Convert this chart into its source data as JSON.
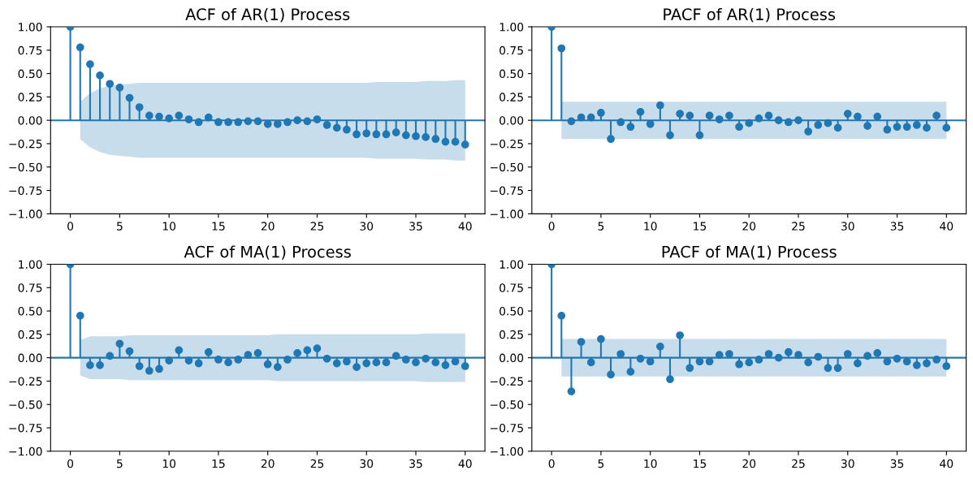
{
  "chart_data": [
    {
      "type": "lollipop",
      "title": "ACF of AR(1) Process",
      "x": [
        0,
        1,
        2,
        3,
        4,
        5,
        6,
        7,
        8,
        9,
        10,
        11,
        12,
        13,
        14,
        15,
        16,
        17,
        18,
        19,
        20,
        21,
        22,
        23,
        24,
        25,
        26,
        27,
        28,
        29,
        30,
        31,
        32,
        33,
        34,
        35,
        36,
        37,
        38,
        39,
        40
      ],
      "xlim": [
        -2,
        42
      ],
      "xticks": [
        0,
        5,
        10,
        15,
        20,
        25,
        30,
        35,
        40
      ],
      "ylim": [
        -1,
        1
      ],
      "yticks": [
        {
          "value": -1,
          "label": "−1.00"
        },
        {
          "value": -0.75,
          "label": "−0.75"
        },
        {
          "value": -0.5,
          "label": "−0.50"
        },
        {
          "value": -0.25,
          "label": "−0.25"
        },
        {
          "value": 0,
          "label": "0.00"
        },
        {
          "value": 0.25,
          "label": "0.25"
        },
        {
          "value": 0.5,
          "label": "0.50"
        },
        {
          "value": 0.75,
          "label": "0.75"
        },
        {
          "value": 1,
          "label": "1.00"
        }
      ],
      "marker": "circle",
      "grid": false,
      "ref_lines": [
        {
          "axis": "y",
          "value": 0,
          "color": "#1f77b4"
        }
      ],
      "series": [
        {
          "color": "#1f77b4",
          "values": [
            1.0,
            0.78,
            0.6,
            0.48,
            0.39,
            0.35,
            0.24,
            0.14,
            0.05,
            0.04,
            0.02,
            0.05,
            0.01,
            -0.02,
            0.03,
            -0.02,
            -0.02,
            -0.02,
            -0.01,
            -0.01,
            -0.04,
            -0.04,
            -0.02,
            0.0,
            -0.01,
            0.01,
            -0.05,
            -0.08,
            -0.1,
            -0.15,
            -0.14,
            -0.15,
            -0.15,
            -0.13,
            -0.16,
            -0.17,
            -0.18,
            -0.2,
            -0.23,
            -0.23,
            -0.26
          ],
          "upper": [
            null,
            0.2,
            0.29,
            0.34,
            0.37,
            0.38,
            0.39,
            0.4,
            0.4,
            0.4,
            0.4,
            0.4,
            0.4,
            0.4,
            0.4,
            0.4,
            0.4,
            0.4,
            0.4,
            0.4,
            0.4,
            0.4,
            0.4,
            0.4,
            0.4,
            0.4,
            0.4,
            0.4,
            0.4,
            0.4,
            0.4,
            0.41,
            0.41,
            0.41,
            0.41,
            0.41,
            0.42,
            0.42,
            0.42,
            0.43,
            0.43
          ],
          "lower": [
            null,
            -0.2,
            -0.29,
            -0.34,
            -0.37,
            -0.38,
            -0.39,
            -0.4,
            -0.4,
            -0.4,
            -0.4,
            -0.4,
            -0.4,
            -0.4,
            -0.4,
            -0.4,
            -0.4,
            -0.4,
            -0.4,
            -0.4,
            -0.4,
            -0.4,
            -0.4,
            -0.4,
            -0.4,
            -0.4,
            -0.4,
            -0.4,
            -0.4,
            -0.4,
            -0.4,
            -0.41,
            -0.41,
            -0.41,
            -0.41,
            -0.41,
            -0.42,
            -0.42,
            -0.42,
            -0.43,
            -0.43
          ]
        }
      ]
    },
    {
      "type": "lollipop",
      "title": "PACF of AR(1) Process",
      "x": [
        0,
        1,
        2,
        3,
        4,
        5,
        6,
        7,
        8,
        9,
        10,
        11,
        12,
        13,
        14,
        15,
        16,
        17,
        18,
        19,
        20,
        21,
        22,
        23,
        24,
        25,
        26,
        27,
        28,
        29,
        30,
        31,
        32,
        33,
        34,
        35,
        36,
        37,
        38,
        39,
        40
      ],
      "xlim": [
        -2,
        42
      ],
      "xticks": [
        0,
        5,
        10,
        15,
        20,
        25,
        30,
        35,
        40
      ],
      "ylim": [
        -1,
        1
      ],
      "yticks": [
        {
          "value": -1,
          "label": "−1.00"
        },
        {
          "value": -0.75,
          "label": "−0.75"
        },
        {
          "value": -0.5,
          "label": "−0.50"
        },
        {
          "value": -0.25,
          "label": "−0.25"
        },
        {
          "value": 0,
          "label": "0.00"
        },
        {
          "value": 0.25,
          "label": "0.25"
        },
        {
          "value": 0.5,
          "label": "0.50"
        },
        {
          "value": 0.75,
          "label": "0.75"
        },
        {
          "value": 1,
          "label": "1.00"
        }
      ],
      "marker": "circle",
      "grid": false,
      "ref_lines": [
        {
          "axis": "y",
          "value": 0,
          "color": "#1f77b4"
        }
      ],
      "series": [
        {
          "color": "#1f77b4",
          "values": [
            1.0,
            0.77,
            -0.01,
            0.03,
            0.03,
            0.08,
            -0.2,
            -0.02,
            -0.07,
            0.09,
            -0.04,
            0.16,
            -0.16,
            0.07,
            0.05,
            -0.16,
            0.05,
            0.01,
            0.05,
            -0.07,
            -0.03,
            0.02,
            0.05,
            0.0,
            -0.02,
            0.0,
            -0.12,
            -0.05,
            -0.03,
            -0.08,
            0.07,
            0.04,
            -0.06,
            0.04,
            -0.1,
            -0.07,
            -0.07,
            -0.05,
            -0.08,
            0.05,
            -0.08
          ],
          "upper": [
            null,
            0.2,
            0.2,
            0.2,
            0.2,
            0.2,
            0.2,
            0.2,
            0.2,
            0.2,
            0.2,
            0.2,
            0.2,
            0.2,
            0.2,
            0.2,
            0.2,
            0.2,
            0.2,
            0.2,
            0.2,
            0.2,
            0.2,
            0.2,
            0.2,
            0.2,
            0.2,
            0.2,
            0.2,
            0.2,
            0.2,
            0.2,
            0.2,
            0.2,
            0.2,
            0.2,
            0.2,
            0.2,
            0.2,
            0.2,
            0.2
          ],
          "lower": [
            null,
            -0.2,
            -0.2,
            -0.2,
            -0.2,
            -0.2,
            -0.2,
            -0.2,
            -0.2,
            -0.2,
            -0.2,
            -0.2,
            -0.2,
            -0.2,
            -0.2,
            -0.2,
            -0.2,
            -0.2,
            -0.2,
            -0.2,
            -0.2,
            -0.2,
            -0.2,
            -0.2,
            -0.2,
            -0.2,
            -0.2,
            -0.2,
            -0.2,
            -0.2,
            -0.2,
            -0.2,
            -0.2,
            -0.2,
            -0.2,
            -0.2,
            -0.2,
            -0.2,
            -0.2,
            -0.2,
            -0.2
          ]
        }
      ]
    },
    {
      "type": "lollipop",
      "title": "ACF of MA(1) Process",
      "x": [
        0,
        1,
        2,
        3,
        4,
        5,
        6,
        7,
        8,
        9,
        10,
        11,
        12,
        13,
        14,
        15,
        16,
        17,
        18,
        19,
        20,
        21,
        22,
        23,
        24,
        25,
        26,
        27,
        28,
        29,
        30,
        31,
        32,
        33,
        34,
        35,
        36,
        37,
        38,
        39,
        40
      ],
      "xlim": [
        -2,
        42
      ],
      "xticks": [
        0,
        5,
        10,
        15,
        20,
        25,
        30,
        35,
        40
      ],
      "ylim": [
        -1,
        1
      ],
      "yticks": [
        {
          "value": -1,
          "label": "−1.00"
        },
        {
          "value": -0.75,
          "label": "−0.75"
        },
        {
          "value": -0.5,
          "label": "−0.50"
        },
        {
          "value": -0.25,
          "label": "−0.25"
        },
        {
          "value": 0,
          "label": "0.00"
        },
        {
          "value": 0.25,
          "label": "0.25"
        },
        {
          "value": 0.5,
          "label": "0.50"
        },
        {
          "value": 0.75,
          "label": "0.75"
        },
        {
          "value": 1,
          "label": "1.00"
        }
      ],
      "marker": "circle",
      "grid": false,
      "ref_lines": [
        {
          "axis": "y",
          "value": 0,
          "color": "#1f77b4"
        }
      ],
      "series": [
        {
          "color": "#1f77b4",
          "values": [
            1.0,
            0.45,
            -0.08,
            -0.08,
            0.02,
            0.15,
            0.07,
            -0.09,
            -0.14,
            -0.12,
            -0.03,
            0.08,
            -0.03,
            -0.06,
            0.06,
            -0.02,
            -0.05,
            -0.02,
            0.03,
            0.05,
            -0.07,
            -0.1,
            -0.02,
            0.05,
            0.08,
            0.1,
            -0.01,
            -0.06,
            -0.04,
            -0.1,
            -0.06,
            -0.05,
            -0.05,
            0.02,
            -0.02,
            -0.05,
            -0.01,
            -0.05,
            -0.08,
            -0.04,
            -0.09
          ],
          "upper": [
            null,
            0.19,
            0.23,
            0.23,
            0.23,
            0.23,
            0.24,
            0.24,
            0.24,
            0.24,
            0.24,
            0.24,
            0.24,
            0.24,
            0.24,
            0.24,
            0.24,
            0.24,
            0.24,
            0.24,
            0.24,
            0.25,
            0.25,
            0.25,
            0.25,
            0.25,
            0.25,
            0.25,
            0.25,
            0.25,
            0.25,
            0.25,
            0.25,
            0.25,
            0.25,
            0.25,
            0.26,
            0.26,
            0.26,
            0.26,
            0.26
          ],
          "lower": [
            null,
            -0.19,
            -0.23,
            -0.23,
            -0.23,
            -0.23,
            -0.24,
            -0.24,
            -0.24,
            -0.24,
            -0.24,
            -0.24,
            -0.24,
            -0.24,
            -0.24,
            -0.24,
            -0.24,
            -0.24,
            -0.24,
            -0.24,
            -0.24,
            -0.25,
            -0.25,
            -0.25,
            -0.25,
            -0.25,
            -0.25,
            -0.25,
            -0.25,
            -0.25,
            -0.25,
            -0.25,
            -0.25,
            -0.25,
            -0.25,
            -0.25,
            -0.26,
            -0.26,
            -0.26,
            -0.26,
            -0.26
          ]
        }
      ]
    },
    {
      "type": "lollipop",
      "title": "PACF of MA(1) Process",
      "x": [
        0,
        1,
        2,
        3,
        4,
        5,
        6,
        7,
        8,
        9,
        10,
        11,
        12,
        13,
        14,
        15,
        16,
        17,
        18,
        19,
        20,
        21,
        22,
        23,
        24,
        25,
        26,
        27,
        28,
        29,
        30,
        31,
        32,
        33,
        34,
        35,
        36,
        37,
        38,
        39,
        40
      ],
      "xlim": [
        -2,
        42
      ],
      "xticks": [
        0,
        5,
        10,
        15,
        20,
        25,
        30,
        35,
        40
      ],
      "ylim": [
        -1,
        1
      ],
      "yticks": [
        {
          "value": -1,
          "label": "−1.00"
        },
        {
          "value": -0.75,
          "label": "−0.75"
        },
        {
          "value": -0.5,
          "label": "−0.50"
        },
        {
          "value": -0.25,
          "label": "−0.25"
        },
        {
          "value": 0,
          "label": "0.00"
        },
        {
          "value": 0.25,
          "label": "0.25"
        },
        {
          "value": 0.5,
          "label": "0.50"
        },
        {
          "value": 0.75,
          "label": "0.75"
        },
        {
          "value": 1,
          "label": "1.00"
        }
      ],
      "marker": "circle",
      "grid": false,
      "ref_lines": [
        {
          "axis": "y",
          "value": 0,
          "color": "#1f77b4"
        }
      ],
      "series": [
        {
          "color": "#1f77b4",
          "values": [
            1.0,
            0.45,
            -0.36,
            0.17,
            -0.05,
            0.2,
            -0.18,
            0.04,
            -0.15,
            -0.01,
            -0.04,
            0.12,
            -0.23,
            0.24,
            -0.11,
            -0.04,
            -0.04,
            0.03,
            0.04,
            -0.07,
            -0.05,
            -0.02,
            0.04,
            0.0,
            0.06,
            0.03,
            -0.05,
            0.01,
            -0.11,
            -0.11,
            0.04,
            -0.06,
            0.02,
            0.05,
            -0.04,
            -0.01,
            -0.04,
            -0.08,
            -0.06,
            -0.02,
            -0.09
          ],
          "upper": [
            null,
            0.2,
            0.2,
            0.2,
            0.2,
            0.2,
            0.2,
            0.2,
            0.2,
            0.2,
            0.2,
            0.2,
            0.2,
            0.2,
            0.2,
            0.2,
            0.2,
            0.2,
            0.2,
            0.2,
            0.2,
            0.2,
            0.2,
            0.2,
            0.2,
            0.2,
            0.2,
            0.2,
            0.2,
            0.2,
            0.2,
            0.2,
            0.2,
            0.2,
            0.2,
            0.2,
            0.2,
            0.2,
            0.2,
            0.2,
            0.2
          ],
          "lower": [
            null,
            -0.2,
            -0.2,
            -0.2,
            -0.2,
            -0.2,
            -0.2,
            -0.2,
            -0.2,
            -0.2,
            -0.2,
            -0.2,
            -0.2,
            -0.2,
            -0.2,
            -0.2,
            -0.2,
            -0.2,
            -0.2,
            -0.2,
            -0.2,
            -0.2,
            -0.2,
            -0.2,
            -0.2,
            -0.2,
            -0.2,
            -0.2,
            -0.2,
            -0.2,
            -0.2,
            -0.2,
            -0.2,
            -0.2,
            -0.2,
            -0.2,
            -0.2,
            -0.2,
            -0.2,
            -0.2,
            -0.2
          ]
        }
      ]
    }
  ]
}
